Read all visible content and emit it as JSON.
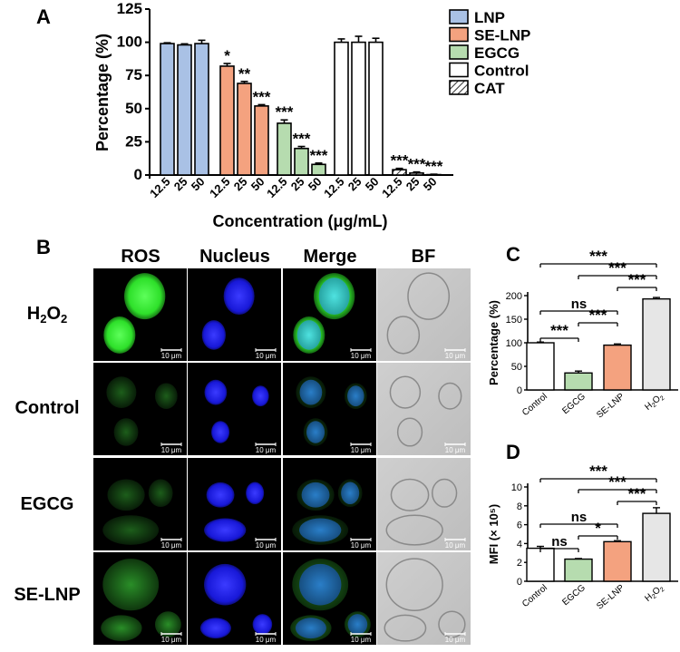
{
  "figure": {
    "panel_labels": [
      "A",
      "B",
      "C",
      "D"
    ],
    "microscopy": {
      "columns": [
        "ROS",
        "Nucleus",
        "Merge",
        "BF"
      ],
      "rows": [
        {
          "label_main": "H",
          "label_sub1": "2",
          "label_mid": "O",
          "label_sub2": "2"
        },
        {
          "label_main": "Control"
        },
        {
          "label_main": "EGCG"
        },
        {
          "label_main": "SE-LNP"
        }
      ],
      "scale_bar": "10 μm"
    }
  },
  "chart_data": [
    {
      "id": "A",
      "type": "bar",
      "xlabel": "Concentration (μg/mL)",
      "ylabel": "Percentage (%)",
      "ylim": [
        0,
        125
      ],
      "yticks": [
        0,
        25,
        50,
        75,
        100,
        125
      ],
      "legend_position": "top-right",
      "legend": [
        {
          "name": "LNP",
          "color": "#a9c1e5",
          "pattern": "solid"
        },
        {
          "name": "SE-LNP",
          "color": "#f4a27f",
          "pattern": "solid"
        },
        {
          "name": "EGCG",
          "color": "#b6dcaf",
          "pattern": "solid"
        },
        {
          "name": "Control",
          "color": "#ffffff",
          "pattern": "solid"
        },
        {
          "name": "CAT",
          "color": "#ffffff",
          "pattern": "hatched"
        }
      ],
      "groups": [
        {
          "name": "LNP",
          "categories": [
            "12.5",
            "25",
            "50"
          ],
          "values": [
            99,
            98,
            99
          ],
          "errors": [
            0.6,
            0.8,
            2.5
          ],
          "sig": [
            "",
            "",
            ""
          ]
        },
        {
          "name": "SE-LNP",
          "categories": [
            "12.5",
            "25",
            "50"
          ],
          "values": [
            82,
            69,
            52
          ],
          "errors": [
            2,
            1.5,
            1
          ],
          "sig": [
            "*",
            "**",
            "***"
          ]
        },
        {
          "name": "EGCG",
          "categories": [
            "12.5",
            "25",
            "50"
          ],
          "values": [
            39,
            20,
            8
          ],
          "errors": [
            2.5,
            1.5,
            1
          ],
          "sig": [
            "***",
            "***",
            "***"
          ]
        },
        {
          "name": "Control",
          "categories": [
            "12.5",
            "25",
            "50"
          ],
          "values": [
            100,
            100,
            100
          ],
          "errors": [
            2.5,
            4.5,
            3
          ],
          "sig": [
            "",
            "",
            ""
          ]
        },
        {
          "name": "CAT",
          "categories": [
            "12.5",
            "25",
            "50"
          ],
          "values": [
            4,
            1.5,
            0.3
          ],
          "errors": [
            1,
            0.8,
            0.3
          ],
          "sig": [
            "***",
            "***",
            "***"
          ]
        }
      ]
    },
    {
      "id": "C",
      "type": "bar",
      "ylabel": "Percentage (%)",
      "ylim": [
        0,
        200
      ],
      "yticks": [
        0,
        50,
        100,
        150,
        200
      ],
      "categories": [
        "Control",
        "EGCG",
        "SE-LNP",
        "H2O2"
      ],
      "values": [
        100,
        36,
        95,
        193
      ],
      "errors": [
        1.5,
        4,
        2.5,
        3
      ],
      "colors": [
        "#ffffff",
        "#b6dcaf",
        "#f4a27f",
        "#e6e6e6"
      ],
      "comparisons": [
        {
          "from": 0,
          "to": 3,
          "label": "***"
        },
        {
          "from": 1,
          "to": 3,
          "label": "***"
        },
        {
          "from": 2,
          "to": 3,
          "label": "***"
        },
        {
          "from": 0,
          "to": 2,
          "label": "ns"
        },
        {
          "from": 1,
          "to": 2,
          "label": "***"
        },
        {
          "from": 0,
          "to": 1,
          "label": "***"
        }
      ]
    },
    {
      "id": "D",
      "type": "bar",
      "ylabel": "MFI (× 10⁵)",
      "ylim": [
        0,
        10
      ],
      "yticks": [
        0,
        2,
        4,
        6,
        8,
        10
      ],
      "categories": [
        "Control",
        "EGCG",
        "SE-LNP",
        "H2O2"
      ],
      "values": [
        3.5,
        2.35,
        4.2,
        7.2
      ],
      "errors": [
        0.2,
        0.06,
        0.1,
        0.6
      ],
      "colors": [
        "#ffffff",
        "#b6dcaf",
        "#f4a27f",
        "#e6e6e6"
      ],
      "comparisons": [
        {
          "from": 0,
          "to": 3,
          "label": "***"
        },
        {
          "from": 1,
          "to": 3,
          "label": "***"
        },
        {
          "from": 2,
          "to": 3,
          "label": "***"
        },
        {
          "from": 0,
          "to": 2,
          "label": "ns"
        },
        {
          "from": 1,
          "to": 2,
          "label": "*"
        },
        {
          "from": 0,
          "to": 1,
          "label": "ns"
        }
      ]
    }
  ]
}
